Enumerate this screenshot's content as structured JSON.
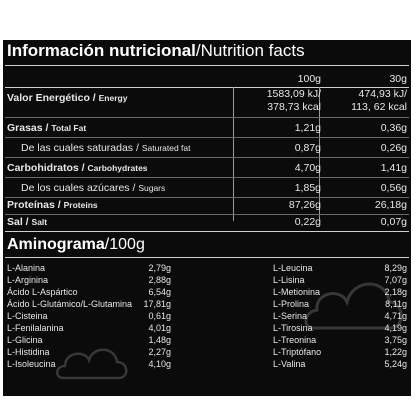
{
  "title": {
    "es": "Información nutricional",
    "sep": "/",
    "en": "Nutrition facts"
  },
  "columns": {
    "per100": "100g",
    "perServing": "30g"
  },
  "rows": [
    {
      "es": "Valor Energético",
      "en": "Energy",
      "v1": [
        "1583,09 kJ/",
        "378,73 kcal"
      ],
      "v2": [
        "474,93 kJ/",
        "113, 62 kcal"
      ]
    },
    {
      "es": "Grasas",
      "en": "Total Fat",
      "v1": [
        "1,21g"
      ],
      "v2": [
        "0,36g"
      ]
    },
    {
      "es": "De las cuales saturadas",
      "en": "Saturated fat",
      "v1": [
        "0,87g"
      ],
      "v2": [
        "0,26g"
      ]
    },
    {
      "es": "Carbohidratos",
      "en": "Carbohydrates",
      "v1": [
        "4,70g"
      ],
      "v2": [
        "1,41g"
      ]
    },
    {
      "es": "De los cuales azúcares",
      "en": "Sugars",
      "v1": [
        "1,85g"
      ],
      "v2": [
        "0,56g"
      ]
    },
    {
      "es": "Proteínas",
      "en": "Proteins",
      "v1": [
        "87,26g"
      ],
      "v2": [
        "26,18g"
      ]
    },
    {
      "es": "Sal",
      "en": "Salt",
      "v1": [
        "0,22g"
      ],
      "v2": [
        "0,07g"
      ]
    }
  ],
  "aminogram": {
    "title": "Aminograma",
    "unit": "/100g",
    "left": [
      {
        "name": "L-Alanina",
        "value": "2,79g"
      },
      {
        "name": "L-Arginina",
        "value": "2,88g"
      },
      {
        "name": "Ácido L-Aspártico",
        "value": "6,54g"
      },
      {
        "name": "Ácido L-Glutámico/L-Glutamina",
        "value": "17,81g"
      },
      {
        "name": "L-Cisteina",
        "value": "0,61g"
      },
      {
        "name": "L-Fenilalanina",
        "value": "4,01g"
      },
      {
        "name": "L-Glicina",
        "value": "1,48g"
      },
      {
        "name": "L-Histidina",
        "value": "2,27g"
      },
      {
        "name": "L-Isoleucina",
        "value": "4,10g"
      }
    ],
    "right": [
      {
        "name": "L-Leucina",
        "value": "8,29g"
      },
      {
        "name": "L-Lisina",
        "value": "7,07g"
      },
      {
        "name": "L-Metionina",
        "value": "2,18g"
      },
      {
        "name": "L-Prolina",
        "value": "8,11g"
      },
      {
        "name": "L-Serina",
        "value": "4,71g"
      },
      {
        "name": "L-Tirosina",
        "value": "4,19g"
      },
      {
        "name": "L-Treonina",
        "value": "3,75g"
      },
      {
        "name": "L-Triptófano",
        "value": "1,22g"
      },
      {
        "name": "L-Valina",
        "value": "5,24g"
      }
    ]
  }
}
